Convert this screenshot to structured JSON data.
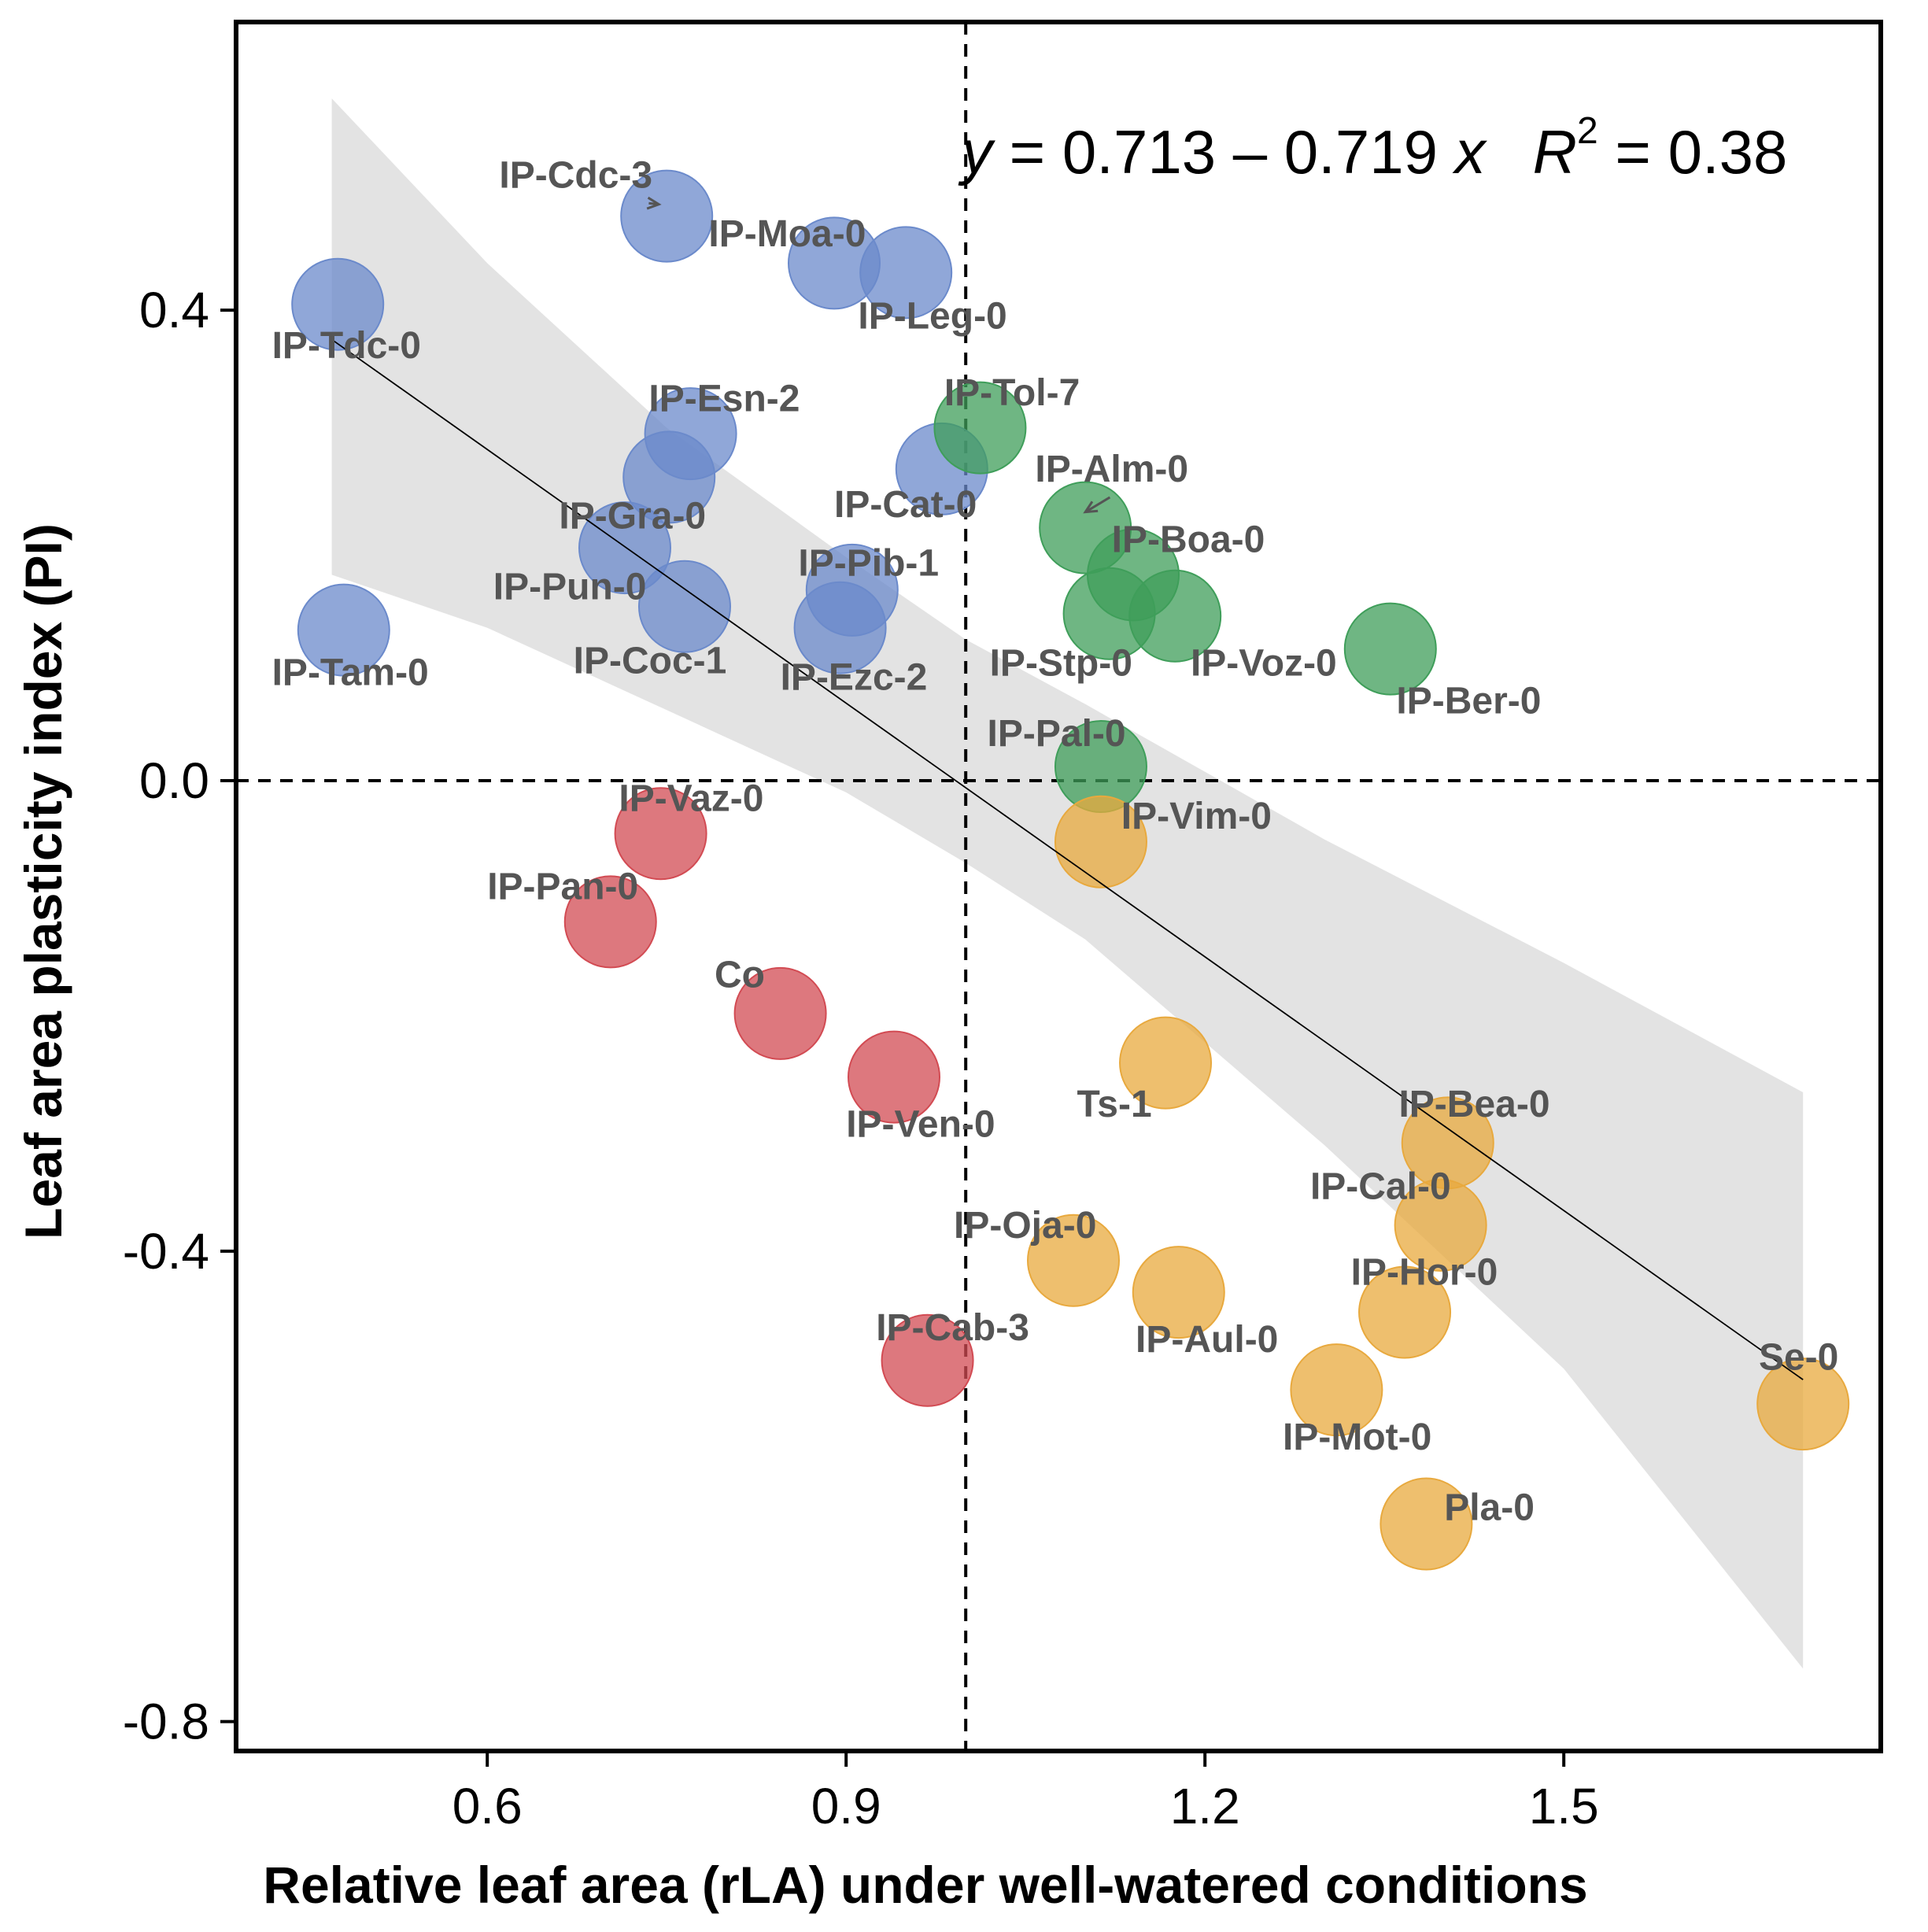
{
  "chart_data": {
    "type": "scatter",
    "xlabel": "Relative leaf area (rLA) under well-watered conditions",
    "ylabel": "Leaf area plasticity index (PI)",
    "xlim": [
      0.39,
      1.765
    ],
    "ylim": [
      -0.825,
      0.645
    ],
    "x_ticks": [
      0.6,
      0.9,
      1.2,
      1.5
    ],
    "x_tick_labels": [
      "0.6",
      "0.9",
      "1.2",
      "1.5"
    ],
    "y_ticks": [
      0.4,
      0.0,
      -0.4,
      -0.8
    ],
    "y_tick_labels": [
      "0.4",
      "0.0",
      "-0.4",
      "-0.8"
    ],
    "reference_lines": {
      "x": 1.0,
      "y": 0.0,
      "style": "dashed"
    },
    "equation": {
      "y_var": "y",
      "body": " = 0.713 – 0.719 ",
      "x_var": "x",
      "r2_var": "R",
      "r2_exp": "2",
      "r2_value": " = 0.38"
    },
    "regression": {
      "intercept": 0.713,
      "slope": -0.719,
      "x_range": [
        0.47,
        1.7
      ],
      "confidence_band": [
        {
          "x": 0.47,
          "lower": 0.175,
          "upper": 0.58
        },
        {
          "x": 0.6,
          "lower": 0.13,
          "upper": 0.44
        },
        {
          "x": 0.75,
          "lower": 0.06,
          "upper": 0.3
        },
        {
          "x": 0.9,
          "lower": -0.01,
          "upper": 0.19
        },
        {
          "x": 1.0,
          "lower": -0.07,
          "upper": 0.12
        },
        {
          "x": 1.1,
          "lower": -0.135,
          "upper": 0.065
        },
        {
          "x": 1.3,
          "lower": -0.31,
          "upper": -0.05
        },
        {
          "x": 1.5,
          "lower": -0.5,
          "upper": -0.155
        },
        {
          "x": 1.7,
          "lower": -0.755,
          "upper": -0.265
        }
      ]
    },
    "band_color": "#d9d9d9",
    "line_color": "#000000",
    "groups": [
      {
        "name": "blue",
        "color": "#6b8acb"
      },
      {
        "name": "green",
        "color": "#3f9e5a"
      },
      {
        "name": "red",
        "color": "#d24b53"
      },
      {
        "name": "orange",
        "color": "#e8a93e"
      }
    ],
    "points": [
      {
        "label": "IP-Tdc-0",
        "x": 0.475,
        "y": 0.405,
        "group": "blue",
        "label_x": 0.42,
        "label_y": 0.37,
        "anchor": "start"
      },
      {
        "label": "IP-Cdc-3",
        "x": 0.75,
        "y": 0.48,
        "group": "blue",
        "label_x": 0.61,
        "label_y": 0.515,
        "anchor": "start",
        "arrow": true
      },
      {
        "label": "IP-Moa-0",
        "x": 0.89,
        "y": 0.44,
        "group": "blue",
        "label_x": 0.785,
        "label_y": 0.465,
        "anchor": "start"
      },
      {
        "label": "IP-Leg-0",
        "x": 0.95,
        "y": 0.432,
        "group": "blue",
        "label_x": 0.91,
        "label_y": 0.395,
        "anchor": "start"
      },
      {
        "label": "IP-Esn-2",
        "x": 0.77,
        "y": 0.295,
        "group": "blue",
        "label_x": 0.735,
        "label_y": 0.325,
        "anchor": "start"
      },
      {
        "label": "IP-Gra-0",
        "x": 0.752,
        "y": 0.258,
        "group": "blue",
        "label_x": 0.66,
        "label_y": 0.225,
        "anchor": "start"
      },
      {
        "label": "IP-Cat-0",
        "x": 0.98,
        "y": 0.265,
        "group": "blue",
        "label_x": 0.89,
        "label_y": 0.235,
        "anchor": "start"
      },
      {
        "label": "IP-Pun-0",
        "x": 0.715,
        "y": 0.198,
        "group": "blue",
        "label_x": 0.605,
        "label_y": 0.165,
        "anchor": "start"
      },
      {
        "label": "IP-Pib-1",
        "x": 0.905,
        "y": 0.162,
        "group": "blue",
        "label_x": 0.86,
        "label_y": 0.185,
        "anchor": "start"
      },
      {
        "label": "IP-Coc-1",
        "x": 0.765,
        "y": 0.148,
        "group": "blue",
        "label_x": 0.672,
        "label_y": 0.102,
        "anchor": "start"
      },
      {
        "label": "IP-Ezc-2",
        "x": 0.895,
        "y": 0.13,
        "group": "blue",
        "label_x": 0.845,
        "label_y": 0.088,
        "anchor": "start"
      },
      {
        "label": "IP-Tam-0",
        "x": 0.48,
        "y": 0.128,
        "group": "blue",
        "label_x": 0.42,
        "label_y": 0.092,
        "anchor": "start"
      },
      {
        "label": "IP-Tol-7",
        "x": 1.012,
        "y": 0.3,
        "group": "green",
        "label_x": 0.982,
        "label_y": 0.33,
        "anchor": "start"
      },
      {
        "label": "IP-Alm-0",
        "x": 1.1,
        "y": 0.215,
        "group": "green",
        "label_x": 1.058,
        "label_y": 0.265,
        "anchor": "start",
        "arrow": true
      },
      {
        "label": "IP-Boa-0",
        "x": 1.14,
        "y": 0.175,
        "group": "green",
        "label_x": 1.122,
        "label_y": 0.205,
        "anchor": "start"
      },
      {
        "label": "IP-Stp-0",
        "x": 1.12,
        "y": 0.142,
        "group": "green",
        "label_x": 1.02,
        "label_y": 0.1,
        "anchor": "start"
      },
      {
        "label": "IP-Voz-0",
        "x": 1.175,
        "y": 0.14,
        "group": "green",
        "label_x": 1.188,
        "label_y": 0.1,
        "anchor": "start"
      },
      {
        "label": "IP-Ber-0",
        "x": 1.355,
        "y": 0.112,
        "group": "green",
        "label_x": 1.36,
        "label_y": 0.068,
        "anchor": "start"
      },
      {
        "label": "IP-Pal-0",
        "x": 1.113,
        "y": 0.012,
        "group": "green",
        "label_x": 1.018,
        "label_y": 0.04,
        "anchor": "start"
      },
      {
        "label": "IP-Vaz-0",
        "x": 0.745,
        "y": -0.045,
        "group": "red",
        "label_x": 0.71,
        "label_y": -0.015,
        "anchor": "start"
      },
      {
        "label": "IP-Pan-0",
        "x": 0.703,
        "y": -0.12,
        "group": "red",
        "label_x": 0.6,
        "label_y": -0.09,
        "anchor": "start"
      },
      {
        "label": "Co",
        "x": 0.845,
        "y": -0.198,
        "group": "red",
        "label_x": 0.79,
        "label_y": -0.165,
        "anchor": "start"
      },
      {
        "label": "IP-Ven-0",
        "x": 0.94,
        "y": -0.252,
        "group": "red",
        "label_x": 0.9,
        "label_y": -0.292,
        "anchor": "start"
      },
      {
        "label": "IP-Cab-3",
        "x": 0.968,
        "y": -0.493,
        "group": "red",
        "label_x": 0.925,
        "label_y": -0.465,
        "anchor": "start"
      },
      {
        "label": "IP-Vim-0",
        "x": 1.113,
        "y": -0.052,
        "group": "orange",
        "label_x": 1.13,
        "label_y": -0.03,
        "anchor": "start"
      },
      {
        "label": "Ts-1",
        "x": 1.167,
        "y": -0.24,
        "group": "orange",
        "label_x": 1.093,
        "label_y": -0.275,
        "anchor": "start"
      },
      {
        "label": "IP-Bea-0",
        "x": 1.403,
        "y": -0.308,
        "group": "orange",
        "label_x": 1.362,
        "label_y": -0.275,
        "anchor": "start"
      },
      {
        "label": "IP-Cal-0",
        "x": 1.397,
        "y": -0.378,
        "group": "orange",
        "label_x": 1.288,
        "label_y": -0.345,
        "anchor": "start"
      },
      {
        "label": "IP-Oja-0",
        "x": 1.09,
        "y": -0.408,
        "group": "orange",
        "label_x": 0.99,
        "label_y": -0.378,
        "anchor": "start"
      },
      {
        "label": "IP-Aul-0",
        "x": 1.178,
        "y": -0.435,
        "group": "orange",
        "label_x": 1.142,
        "label_y": -0.475,
        "anchor": "start"
      },
      {
        "label": "IP-Hor-0",
        "x": 1.367,
        "y": -0.452,
        "group": "orange",
        "label_x": 1.322,
        "label_y": -0.418,
        "anchor": "start"
      },
      {
        "label": "IP-Mot-0",
        "x": 1.31,
        "y": -0.518,
        "group": "orange",
        "label_x": 1.265,
        "label_y": -0.558,
        "anchor": "start"
      },
      {
        "label": "Se-0",
        "x": 1.7,
        "y": -0.53,
        "group": "orange",
        "label_x": 1.663,
        "label_y": -0.49,
        "anchor": "start"
      },
      {
        "label": "Pla-0",
        "x": 1.385,
        "y": -0.632,
        "group": "orange",
        "label_x": 1.4,
        "label_y": -0.618,
        "anchor": "start"
      }
    ]
  }
}
